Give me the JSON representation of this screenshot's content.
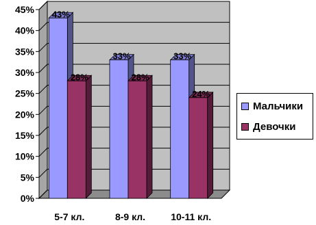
{
  "chart_data": {
    "type": "bar",
    "categories": [
      "5-7 кл.",
      "8-9 кл.",
      "10-11 кл."
    ],
    "series": [
      {
        "name": "Мальчики",
        "values": [
          43,
          33,
          33
        ],
        "labels": [
          "43%",
          "33%",
          "33%"
        ],
        "color": "#9999ff"
      },
      {
        "name": "Девочки",
        "values": [
          28,
          28,
          24
        ],
        "labels": [
          "28%",
          "28%",
          "24%"
        ],
        "color": "#993366"
      }
    ],
    "ylim": [
      0,
      45
    ],
    "yticks": [
      "0%",
      "5%",
      "10%",
      "15%",
      "20%",
      "25%",
      "30%",
      "35%",
      "40%",
      "45%"
    ],
    "grid": true,
    "legend_placement": "right",
    "plot_background": "#c0c0c0"
  }
}
